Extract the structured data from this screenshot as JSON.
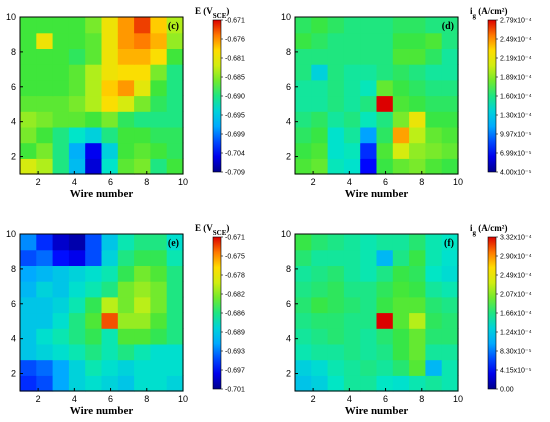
{
  "chart_data": [
    {
      "type": "heatmap",
      "panel_label": "(c)",
      "xlabel": "Wire number",
      "colorbar_title": "E (V",
      "colorbar_title_sub": "SCE",
      "colorbar_title_end": ")",
      "x_ticks": [
        "2",
        "4",
        "6",
        "8",
        "10"
      ],
      "y_ticks": [
        "2",
        "4",
        "6",
        "8",
        "10"
      ],
      "colorbar_ticks": [
        "-0.671",
        "-0.676",
        "-0.681",
        "-0.685",
        "-0.690",
        "-0.695",
        "-0.699",
        "-0.704",
        "-0.709"
      ],
      "xlim": [
        1,
        10
      ],
      "ylim": [
        1,
        10
      ],
      "vmin": -0.709,
      "vmax": -0.671,
      "z": [
        [
          -0.682,
          -0.684,
          -0.69,
          -0.696,
          -0.706,
          -0.692,
          -0.687,
          -0.686,
          -0.69,
          -0.688
        ],
        [
          -0.688,
          -0.686,
          -0.69,
          -0.697,
          -0.705,
          -0.694,
          -0.688,
          -0.687,
          -0.688,
          -0.689
        ],
        [
          -0.686,
          -0.688,
          -0.69,
          -0.692,
          -0.694,
          -0.69,
          -0.688,
          -0.688,
          -0.689,
          -0.689
        ],
        [
          -0.685,
          -0.686,
          -0.687,
          -0.687,
          -0.688,
          -0.686,
          -0.689,
          -0.69,
          -0.69,
          -0.69
        ],
        [
          -0.687,
          -0.687,
          -0.687,
          -0.686,
          -0.684,
          -0.679,
          -0.682,
          -0.686,
          -0.689,
          -0.69
        ],
        [
          -0.688,
          -0.688,
          -0.688,
          -0.687,
          -0.684,
          -0.678,
          -0.676,
          -0.681,
          -0.688,
          -0.69
        ],
        [
          -0.688,
          -0.688,
          -0.688,
          -0.687,
          -0.684,
          -0.68,
          -0.679,
          -0.679,
          -0.686,
          -0.69
        ],
        [
          -0.688,
          -0.688,
          -0.688,
          -0.689,
          -0.687,
          -0.68,
          -0.677,
          -0.677,
          -0.679,
          -0.688
        ],
        [
          -0.688,
          -0.68,
          -0.688,
          -0.688,
          -0.687,
          -0.68,
          -0.676,
          -0.675,
          -0.677,
          -0.685
        ],
        [
          -0.688,
          -0.688,
          -0.688,
          -0.688,
          -0.686,
          -0.68,
          -0.676,
          -0.673,
          -0.678,
          -0.684
        ]
      ]
    },
    {
      "type": "heatmap",
      "panel_label": "(d)",
      "xlabel": "Wire number",
      "colorbar_title": "i",
      "colorbar_title_sub": "g",
      "colorbar_title_end": " (A/cm²)",
      "x_ticks": [
        "2",
        "4",
        "6",
        "8",
        "10"
      ],
      "y_ticks": [
        "2",
        "4",
        "6",
        "8",
        "10"
      ],
      "colorbar_ticks": [
        "2.79x10⁻⁴",
        "2.49x10⁻⁴",
        "2.19x10⁻⁴",
        "1.89x10⁻⁴",
        "1.60x10⁻⁴",
        "1.30x10⁻⁴",
        "9.97x10⁻⁵",
        "6.99x10⁻⁵",
        "4.00x10⁻⁵"
      ],
      "xlim": [
        1,
        10
      ],
      "ylim": [
        1,
        10
      ],
      "vmin": 4e-05,
      "vmax": 0.000279,
      "z": [
        [
          0.000175,
          0.00018,
          0.00015,
          0.000145,
          7e-05,
          0.00017,
          0.00018,
          0.000185,
          0.000175,
          0.00017
        ],
        [
          0.00017,
          0.000175,
          0.000145,
          0.00015,
          8e-05,
          0.000175,
          0.00021,
          0.00019,
          0.000185,
          0.00018
        ],
        [
          0.000165,
          0.00017,
          0.000145,
          0.000155,
          0.00011,
          0.000165,
          0.000245,
          0.0002,
          0.00018,
          0.000175
        ],
        [
          0.00016,
          0.000165,
          0.000155,
          0.00016,
          0.00015,
          0.00016,
          0.000185,
          0.00022,
          0.00017,
          0.00017
        ],
        [
          0.000155,
          0.000155,
          0.00016,
          0.000155,
          0.00016,
          0.000279,
          0.000175,
          0.00017,
          0.000165,
          0.000165
        ],
        [
          0.000155,
          0.000155,
          0.00016,
          0.000155,
          0.00015,
          0.00018,
          0.00017,
          0.000165,
          0.00016,
          0.00016
        ],
        [
          0.00016,
          0.000135,
          0.00016,
          0.000155,
          0.000155,
          0.00016,
          0.000165,
          0.00016,
          0.000155,
          0.000155
        ],
        [
          0.00016,
          0.00016,
          0.00016,
          0.00016,
          0.00016,
          0.00016,
          0.000175,
          0.000175,
          0.000165,
          0.000155
        ],
        [
          0.00017,
          0.000165,
          0.00016,
          0.00016,
          0.00016,
          0.00016,
          0.00017,
          0.00017,
          0.000175,
          0.00016
        ],
        [
          0.000165,
          0.00017,
          0.000165,
          0.00016,
          0.00016,
          0.00016,
          0.000165,
          0.000165,
          0.00016,
          0.00016
        ]
      ]
    },
    {
      "type": "heatmap",
      "panel_label": "(e)",
      "xlabel": "Wire number",
      "colorbar_title": "E (V",
      "colorbar_title_sub": "SCE",
      "colorbar_title_end": ")",
      "x_ticks": [
        "2",
        "4",
        "6",
        "8",
        "10"
      ],
      "y_ticks": [
        "2",
        "4",
        "6",
        "8",
        "10"
      ],
      "colorbar_ticks": [
        "-0.671",
        "-0.675",
        "-0.678",
        "-0.682",
        "-0.686",
        "-0.689",
        "-0.693",
        "-0.697",
        "-0.701"
      ],
      "xlim": [
        1,
        10
      ],
      "ylim": [
        1,
        10
      ],
      "vmin": -0.701,
      "vmax": -0.671,
      "z": [
        [
          -0.696,
          -0.695,
          -0.692,
          -0.689,
          -0.688,
          -0.689,
          -0.69,
          -0.688,
          -0.688,
          -0.689
        ],
        [
          -0.695,
          -0.694,
          -0.692,
          -0.689,
          -0.687,
          -0.688,
          -0.689,
          -0.688,
          -0.688,
          -0.688
        ],
        [
          -0.69,
          -0.689,
          -0.688,
          -0.687,
          -0.686,
          -0.687,
          -0.686,
          -0.687,
          -0.688,
          -0.688
        ],
        [
          -0.69,
          -0.688,
          -0.687,
          -0.686,
          -0.685,
          -0.687,
          -0.684,
          -0.684,
          -0.685,
          -0.686
        ],
        [
          -0.69,
          -0.69,
          -0.688,
          -0.686,
          -0.684,
          -0.673,
          -0.682,
          -0.682,
          -0.684,
          -0.686
        ],
        [
          -0.69,
          -0.69,
          -0.689,
          -0.687,
          -0.685,
          -0.681,
          -0.683,
          -0.681,
          -0.683,
          -0.686
        ],
        [
          -0.691,
          -0.689,
          -0.69,
          -0.688,
          -0.687,
          -0.686,
          -0.683,
          -0.682,
          -0.683,
          -0.686
        ],
        [
          -0.692,
          -0.691,
          -0.69,
          -0.689,
          -0.688,
          -0.687,
          -0.685,
          -0.683,
          -0.684,
          -0.686
        ],
        [
          -0.695,
          -0.694,
          -0.697,
          -0.698,
          -0.695,
          -0.689,
          -0.686,
          -0.685,
          -0.685,
          -0.687
        ],
        [
          -0.693,
          -0.696,
          -0.699,
          -0.7,
          -0.695,
          -0.69,
          -0.687,
          -0.686,
          -0.686,
          -0.688
        ]
      ]
    },
    {
      "type": "heatmap",
      "panel_label": "(f)",
      "xlabel": "Wire number",
      "colorbar_title": "i",
      "colorbar_title_sub": "g",
      "colorbar_title_end": " (A/cm²)",
      "x_ticks": [
        "2",
        "4",
        "6",
        "8",
        "10"
      ],
      "y_ticks": [
        "2",
        "4",
        "6",
        "8",
        "10"
      ],
      "colorbar_ticks": [
        "3.32x10⁻⁴",
        "2.90x10⁻⁴",
        "2.49x10⁻⁴",
        "2.07x10⁻⁴",
        "1.66x10⁻⁴",
        "1.24x10⁻⁴",
        "8.30x10⁻⁵",
        "4.15x10⁻⁵",
        "0.00"
      ],
      "xlim": [
        1,
        10
      ],
      "ylim": [
        1,
        10
      ],
      "vmin": 0,
      "vmax": 0.000332,
      "z": [
        [
          0.00012,
          0.00013,
          0.00015,
          0.00016,
          0.00016,
          0.00015,
          0.000145,
          0.000155,
          0.00016,
          0.000155
        ],
        [
          0.00013,
          0.00014,
          0.000155,
          0.00016,
          0.000165,
          0.00016,
          0.00017,
          0.00019,
          0.00011,
          0.000155
        ],
        [
          0.000155,
          0.00016,
          0.00016,
          0.000165,
          0.00016,
          0.000165,
          0.00018,
          0.000195,
          0.00016,
          0.00016
        ],
        [
          0.00016,
          0.000165,
          0.00017,
          0.000165,
          0.00016,
          0.00017,
          0.00018,
          0.000195,
          0.00017,
          0.00017
        ],
        [
          0.000165,
          0.00017,
          0.00017,
          0.000165,
          0.000165,
          0.000332,
          0.00019,
          0.00022,
          0.000175,
          0.00017
        ],
        [
          0.00017,
          0.00018,
          0.000175,
          0.00017,
          0.000165,
          0.00018,
          0.00019,
          0.00019,
          0.00017,
          0.000165
        ],
        [
          0.000165,
          0.00017,
          0.000175,
          0.000165,
          0.000165,
          0.000175,
          0.000185,
          0.00018,
          0.00016,
          0.000155
        ],
        [
          0.00016,
          0.000165,
          0.00017,
          0.00016,
          0.000155,
          0.000165,
          0.00018,
          0.000175,
          0.00015,
          0.00014
        ],
        [
          0.00017,
          0.00016,
          0.00016,
          0.00016,
          0.000155,
          0.00011,
          0.000165,
          0.00018,
          0.000155,
          0.000145
        ],
        [
          0.00018,
          0.00017,
          0.000165,
          0.00016,
          0.000155,
          0.00016,
          0.00016,
          0.00017,
          0.000155,
          0.00015
        ]
      ]
    }
  ]
}
